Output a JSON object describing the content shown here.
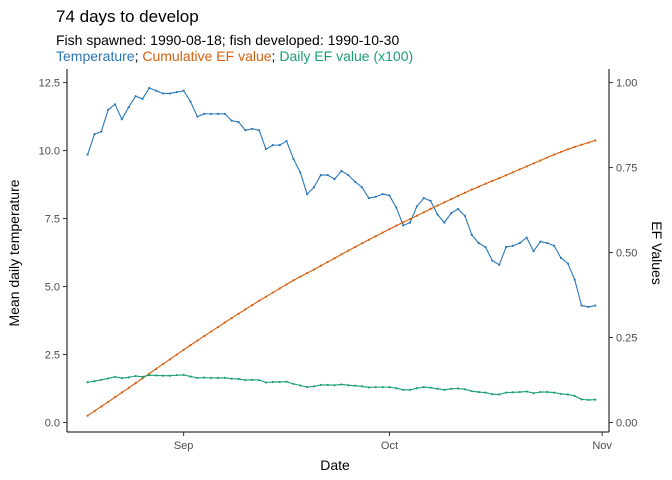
{
  "chart_data": {
    "type": "line",
    "title": "74 days to develop",
    "subtitle": "Fish spawned: 1990-08-18; fish developed: 1990-10-30",
    "legend_line": [
      {
        "text": "Temperature",
        "color": "#2b78b8"
      },
      {
        "text": "; ",
        "color": "#000000"
      },
      {
        "text": "Cumulative EF value",
        "color": "#d95f0e"
      },
      {
        "text": "; ",
        "color": "#000000"
      },
      {
        "text": "Daily EF value (x100)",
        "color": "#1b9e77"
      }
    ],
    "xlabel": "Date",
    "ylabel": "Mean daily temperature",
    "ylabel_right": "EF Values",
    "x_ticks": [
      {
        "label": "Sep",
        "date": "1990-09-01"
      },
      {
        "label": "Oct",
        "date": "1990-10-01"
      },
      {
        "label": "Nov",
        "date": "1990-11-01"
      }
    ],
    "xlim": [
      "1990-08-15",
      "1990-11-02"
    ],
    "ylim": [
      -0.35,
      13.0
    ],
    "y_ticks": [
      "0.0",
      "2.5",
      "5.0",
      "7.5",
      "10.0",
      "12.5"
    ],
    "y_tick_values": [
      0,
      2.5,
      5,
      7.5,
      10,
      12.5
    ],
    "ylim_right": [
      -0.028,
      1.04
    ],
    "y_ticks_right": [
      "0.00",
      "0.25",
      "0.50",
      "0.75",
      "1.00"
    ],
    "y_tick_values_right": [
      0,
      0.25,
      0.5,
      0.75,
      1.0
    ],
    "grid": false,
    "series": [
      {
        "name": "Temperature",
        "color": "#2b78b8",
        "axis": "left",
        "start_date": "1990-08-18",
        "values": [
          9.85,
          10.6,
          10.7,
          11.5,
          11.7,
          11.15,
          11.6,
          12.0,
          11.9,
          12.3,
          12.2,
          12.1,
          12.1,
          12.15,
          12.2,
          11.8,
          11.25,
          11.35,
          11.35,
          11.35,
          11.35,
          11.1,
          11.05,
          10.75,
          10.8,
          10.75,
          10.05,
          10.2,
          10.2,
          10.35,
          9.7,
          9.2,
          8.4,
          8.65,
          9.1,
          9.1,
          8.95,
          9.25,
          9.1,
          8.85,
          8.65,
          8.25,
          8.3,
          8.4,
          8.35,
          7.9,
          7.25,
          7.35,
          7.95,
          8.25,
          8.15,
          7.65,
          7.35,
          7.7,
          7.85,
          7.6,
          6.9,
          6.6,
          6.45,
          5.95,
          5.8,
          6.45,
          6.5,
          6.6,
          6.8,
          6.3,
          6.65,
          6.6,
          6.5,
          6.05,
          5.85,
          5.25,
          4.3,
          4.25,
          4.3
        ]
      },
      {
        "name": "Cumulative EF value",
        "color": "#d95f0e",
        "axis": "right",
        "start_date": "1990-08-18",
        "values": [
          0.02,
          0.0335,
          0.047,
          0.0605,
          0.0745,
          0.0882,
          0.1018,
          0.1158,
          0.1298,
          0.1438,
          0.1578,
          0.1718,
          0.1858,
          0.1998,
          0.2138,
          0.2276,
          0.2409,
          0.2542,
          0.2675,
          0.2808,
          0.2941,
          0.3071,
          0.32,
          0.3327,
          0.3454,
          0.3581,
          0.3701,
          0.3822,
          0.3943,
          0.4064,
          0.418,
          0.4289,
          0.4394,
          0.4502,
          0.4612,
          0.4723,
          0.4833,
          0.4945,
          0.5056,
          0.5164,
          0.5271,
          0.5375,
          0.548,
          0.5585,
          0.5689,
          0.5791,
          0.5888,
          0.5985,
          0.6084,
          0.6184,
          0.6285,
          0.638,
          0.6475,
          0.6571,
          0.6667,
          0.676,
          0.685,
          0.6937,
          0.7024,
          0.7107,
          0.7189,
          0.7275,
          0.7361,
          0.7448,
          0.7536,
          0.7621,
          0.7708,
          0.7795,
          0.788,
          0.796,
          0.8037,
          0.8109,
          0.8172,
          0.8234,
          0.8296
        ]
      },
      {
        "name": "Daily EF value (x100)",
        "color": "#1b9e77",
        "axis": "left",
        "start_date": "1990-08-18",
        "values": [
          1.48,
          1.52,
          1.57,
          1.62,
          1.68,
          1.63,
          1.66,
          1.71,
          1.68,
          1.74,
          1.73,
          1.72,
          1.72,
          1.74,
          1.75,
          1.69,
          1.64,
          1.65,
          1.64,
          1.64,
          1.64,
          1.61,
          1.6,
          1.56,
          1.57,
          1.56,
          1.47,
          1.49,
          1.49,
          1.5,
          1.42,
          1.36,
          1.3,
          1.33,
          1.38,
          1.38,
          1.37,
          1.4,
          1.37,
          1.35,
          1.33,
          1.29,
          1.3,
          1.3,
          1.3,
          1.26,
          1.2,
          1.2,
          1.26,
          1.3,
          1.28,
          1.24,
          1.2,
          1.24,
          1.25,
          1.22,
          1.15,
          1.12,
          1.1,
          1.04,
          1.03,
          1.1,
          1.11,
          1.12,
          1.14,
          1.08,
          1.12,
          1.12,
          1.1,
          1.05,
          1.03,
          0.98,
          0.85,
          0.83,
          0.84
        ]
      }
    ]
  }
}
